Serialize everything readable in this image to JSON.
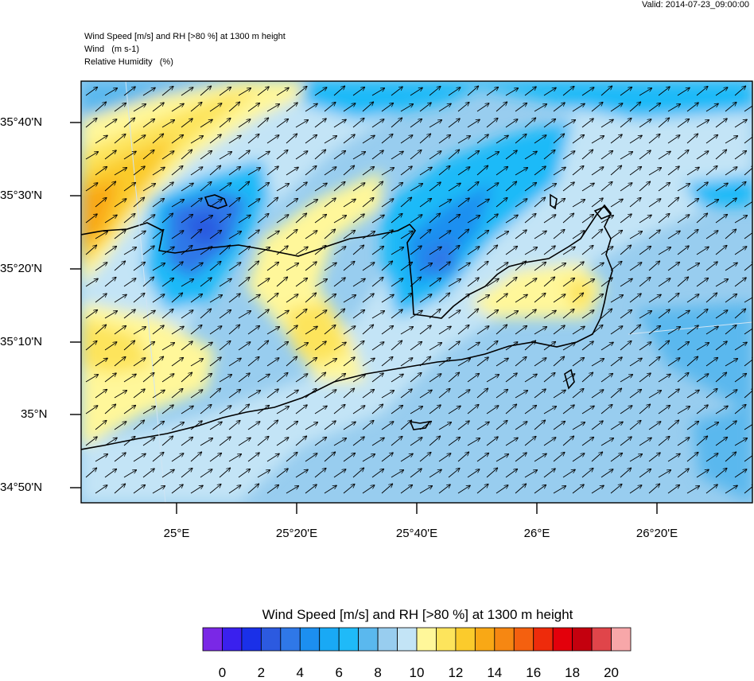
{
  "valid_time": "Valid: 2014-07-23_09:00:00",
  "header": {
    "line1": "Wind Speed [m/s] and RH [>80 %] at 1300 m height",
    "line2": "Wind   (m s-1)",
    "line3": "Relative Humidity   (%)"
  },
  "axes": {
    "lat_labels": [
      "35°40'N",
      "35°30'N",
      "35°20'N",
      "35°10'N",
      "35°N",
      "34°50'N"
    ],
    "lon_labels": [
      "25°E",
      "25°20'E",
      "25°40'E",
      "26°E",
      "26°20'E"
    ]
  },
  "colorbar": {
    "title": "Wind Speed [m/s] and RH [>80 %] at 1300 m height",
    "ticks": [
      "0",
      "2",
      "4",
      "6",
      "8",
      "10",
      "12",
      "14",
      "16",
      "18",
      "20"
    ],
    "colors": [
      "#7a28e6",
      "#3a20ee",
      "#1a30e8",
      "#2c5ae0",
      "#2f78e8",
      "#1c8ff0",
      "#19a9f5",
      "#1fbaf8",
      "#5ab8ee",
      "#98cdef",
      "#c3e4f6",
      "#fff79a",
      "#fde45c",
      "#fbcb2c",
      "#f9a815",
      "#f68712",
      "#f4600f",
      "#ee2b0b",
      "#e3000b",
      "#c4000e",
      "#e0454a",
      "#f7a7a9"
    ]
  },
  "map": {
    "wind_direction": "southwest",
    "coastline_color": "#000000"
  }
}
